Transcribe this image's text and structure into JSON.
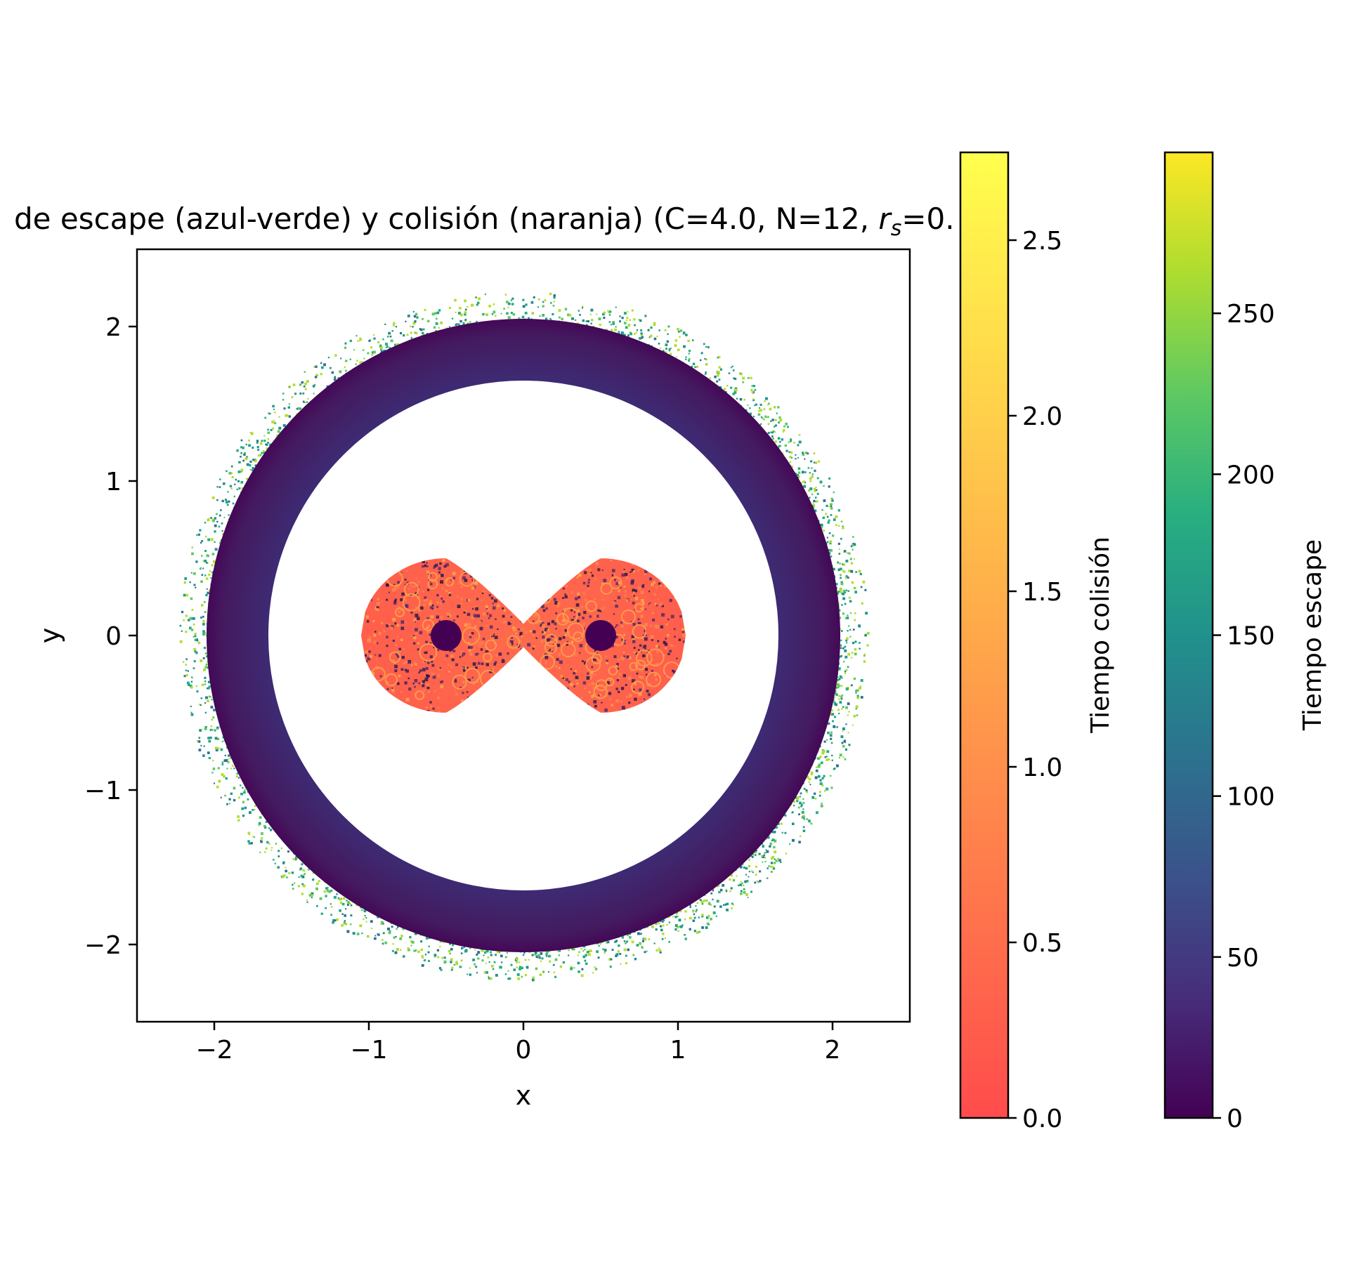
{
  "chart_data": {
    "type": "heatmap",
    "title_text": "de escape (azul-verde) y colisión (naranja) (C=4.0, N=",
    "title_middle": "12, ",
    "title_r": "r",
    "title_s": "s",
    "title_end": "=0.",
    "xlabel": "x",
    "ylabel": "y",
    "xlim": [
      -2.5,
      2.5
    ],
    "ylim": [
      -2.5,
      2.5
    ],
    "xticks": [
      {
        "value": -2,
        "label": "−2"
      },
      {
        "value": -1,
        "label": "−1"
      },
      {
        "value": 0,
        "label": "0"
      },
      {
        "value": 1,
        "label": "1"
      },
      {
        "value": 2,
        "label": "2"
      }
    ],
    "yticks": [
      {
        "value": -2,
        "label": "−2"
      },
      {
        "value": -1,
        "label": "−1"
      },
      {
        "value": 0,
        "label": "0"
      },
      {
        "value": 1,
        "label": "1"
      },
      {
        "value": 2,
        "label": "2"
      }
    ],
    "grid": false,
    "regions": {
      "escape_ring": {
        "inner_radius": 1.65,
        "outer_radius": 2.05,
        "fringe_radius": 2.2,
        "colormap": "viridis"
      },
      "collision_zone": {
        "primaries_x": [
          -0.5,
          0.5
        ],
        "half_height": 0.5,
        "x_extent": [
          -1.05,
          1.05
        ],
        "colormap": "autumn-like"
      },
      "primaries": [
        {
          "x": -0.5,
          "y": 0,
          "radius": 0.1
        },
        {
          "x": 0.5,
          "y": 0,
          "radius": 0.1
        }
      ]
    },
    "colorbars": [
      {
        "label": "Tiempo colisión",
        "range": [
          0,
          2.75
        ],
        "ticks": [
          {
            "value": 0.0,
            "label": "0.0"
          },
          {
            "value": 0.5,
            "label": "0.5"
          },
          {
            "value": 1.0,
            "label": "1.0"
          },
          {
            "value": 1.5,
            "label": "1.5"
          },
          {
            "value": 2.0,
            "label": "2.0"
          },
          {
            "value": 2.5,
            "label": "2.5"
          }
        ],
        "colors": [
          "#ff4c4c",
          "#ff7a4c",
          "#ffa84a",
          "#ffd34a",
          "#ffff4d"
        ]
      },
      {
        "label": "Tiempo escape",
        "range": [
          0,
          300
        ],
        "ticks": [
          {
            "value": 0,
            "label": "0"
          },
          {
            "value": 50,
            "label": "50"
          },
          {
            "value": 100,
            "label": "100"
          },
          {
            "value": 150,
            "label": "150"
          },
          {
            "value": 200,
            "label": "200"
          },
          {
            "value": 250,
            "label": "250"
          }
        ],
        "colors": [
          "#440154",
          "#472d7b",
          "#3b528b",
          "#2c728e",
          "#21918c",
          "#28ae80",
          "#5ec962",
          "#addc30",
          "#fde725"
        ]
      }
    ]
  }
}
